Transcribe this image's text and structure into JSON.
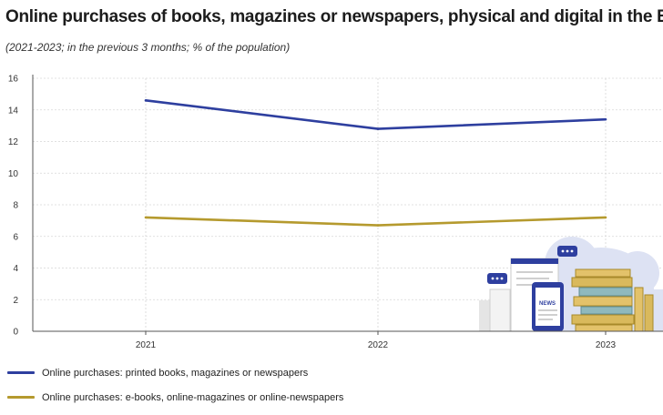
{
  "chart_data": {
    "type": "line",
    "title": "Online purchases of books, magazines or newspapers, physical and digital in the EU",
    "subtitle": "(2021-2023; in the previous 3 months; % of the population)",
    "categories": [
      "2021",
      "2022",
      "2023"
    ],
    "ylim": [
      0,
      16
    ],
    "yticks": [
      "0",
      "2",
      "4",
      "6",
      "8",
      "10",
      "12",
      "14",
      "16"
    ],
    "xlabel": "",
    "ylabel": "",
    "legend_position": "bottom",
    "series": [
      {
        "name": "Online purchases: printed books, magazines or newspapers",
        "values": [
          14.6,
          12.8,
          13.4
        ],
        "color": "#2e3f9f"
      },
      {
        "name": "Online purchases: e-books, online-magazines or online-newspapers",
        "values": [
          7.2,
          6.7,
          7.2
        ],
        "color": "#b59a2e"
      }
    ],
    "illustration": {
      "sign": "NEWS"
    }
  }
}
